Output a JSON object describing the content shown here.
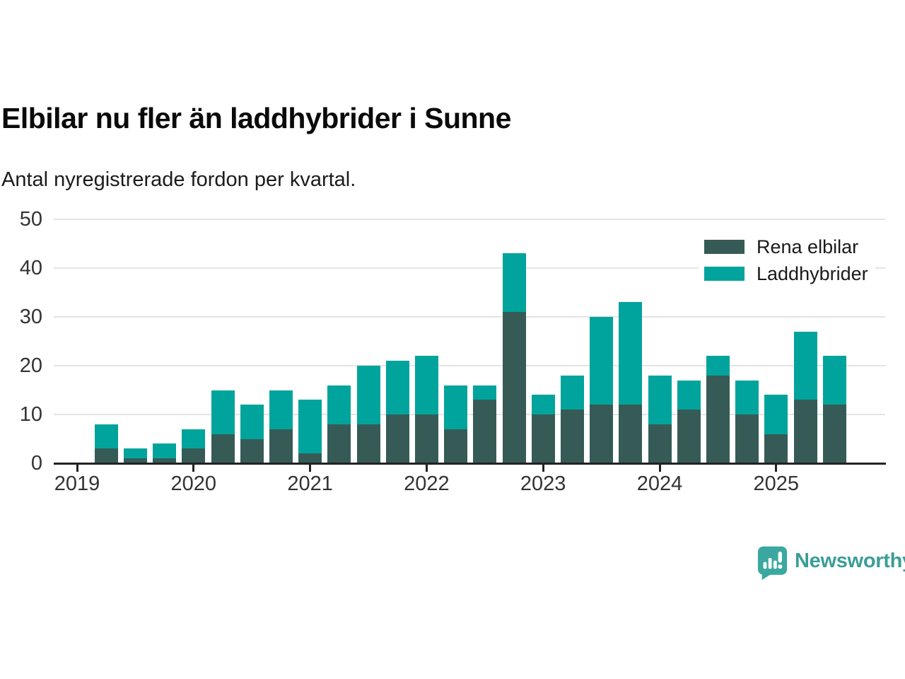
{
  "header": {
    "title": "Elbilar nu fler än laddhybrider i Sunne",
    "subtitle": "Antal nyregistrerade fordon per kvartal."
  },
  "legend": {
    "items": [
      {
        "label": "Rena elbilar",
        "color": "#365b56"
      },
      {
        "label": "Laddhybrider",
        "color": "#00a49c"
      }
    ]
  },
  "colors": {
    "elbilar": "#365b56",
    "laddhybrider": "#00a49c",
    "axis": "#222222",
    "grid": "#e4e4e4",
    "tick_text": "#333333",
    "brand": "#3b9e97"
  },
  "chart_data": {
    "type": "bar",
    "stacked": true,
    "title": "Elbilar nu fler än laddhybrider i Sunne",
    "subtitle": "Antal nyregistrerade fordon per kvartal.",
    "xlabel": "",
    "ylabel": "",
    "ylim": [
      0,
      50
    ],
    "yticks": [
      0,
      10,
      20,
      30,
      40,
      50
    ],
    "grid": true,
    "legend_position": "top-right",
    "categories": [
      "2019 Q1",
      "2019 Q2",
      "2019 Q3",
      "2019 Q4",
      "2020 Q1",
      "2020 Q2",
      "2020 Q3",
      "2020 Q4",
      "2021 Q1",
      "2021 Q2",
      "2021 Q3",
      "2021 Q4",
      "2022 Q1",
      "2022 Q2",
      "2022 Q3",
      "2022 Q4",
      "2023 Q1",
      "2023 Q2",
      "2023 Q3",
      "2023 Q4",
      "2024 Q1",
      "2024 Q2",
      "2024 Q3",
      "2024 Q4",
      "2025 Q1",
      "2025 Q2",
      "2025 Q3"
    ],
    "series": [
      {
        "name": "Rena elbilar",
        "values": [
          null,
          3,
          1,
          1,
          3,
          6,
          5,
          7,
          2,
          8,
          8,
          10,
          10,
          7,
          13,
          31,
          10,
          11,
          12,
          12,
          8,
          11,
          18,
          10,
          6,
          13,
          12
        ]
      },
      {
        "name": "Laddhybrider",
        "values": [
          null,
          5,
          2,
          3,
          4,
          9,
          7,
          8,
          11,
          8,
          12,
          11,
          12,
          9,
          3,
          12,
          4,
          7,
          18,
          21,
          10,
          6,
          4,
          7,
          8,
          14,
          10
        ]
      }
    ],
    "stacked_totals": [
      null,
      8,
      3,
      4,
      7,
      15,
      12,
      15,
      13,
      16,
      20,
      21,
      22,
      16,
      16,
      43,
      14,
      18,
      30,
      33,
      18,
      17,
      22,
      17,
      14,
      27,
      22
    ],
    "xticks": [
      {
        "label": "2019",
        "index": 0
      },
      {
        "label": "2020",
        "index": 4
      },
      {
        "label": "2021",
        "index": 8
      },
      {
        "label": "2022",
        "index": 12
      },
      {
        "label": "2023",
        "index": 16
      },
      {
        "label": "2024",
        "index": 20
      },
      {
        "label": "2025",
        "index": 24
      }
    ]
  },
  "footer": {
    "brand_name": "Newsworthy"
  }
}
